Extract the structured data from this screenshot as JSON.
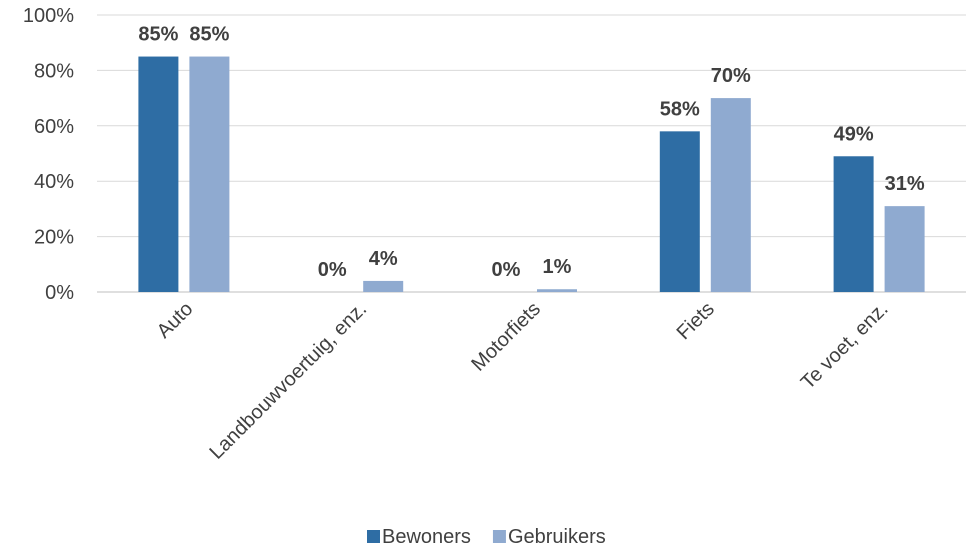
{
  "chart_data": {
    "type": "bar",
    "title": "",
    "xlabel": "",
    "ylabel": "",
    "ylim": [
      0,
      100
    ],
    "y_ticks": [
      "0%",
      "20%",
      "40%",
      "60%",
      "80%",
      "100%"
    ],
    "y_tick_values": [
      0,
      20,
      40,
      60,
      80,
      100
    ],
    "grid": true,
    "legend_position": "bottom",
    "categories": [
      "Auto",
      "Landbouwvoertuig, enz.",
      "Motorfiets",
      "Fiets",
      "Te voet, enz."
    ],
    "series": [
      {
        "name": "Bewoners",
        "color": "#2e6da4",
        "values": [
          85,
          0,
          0,
          58,
          49
        ],
        "labels": [
          "85%",
          "0%",
          "0%",
          "58%",
          "49%"
        ]
      },
      {
        "name": "Gebruikers",
        "color": "#8faad0",
        "values": [
          85,
          4,
          1,
          70,
          31
        ],
        "labels": [
          "85%",
          "4%",
          "1%",
          "70%",
          "31%"
        ]
      }
    ]
  }
}
